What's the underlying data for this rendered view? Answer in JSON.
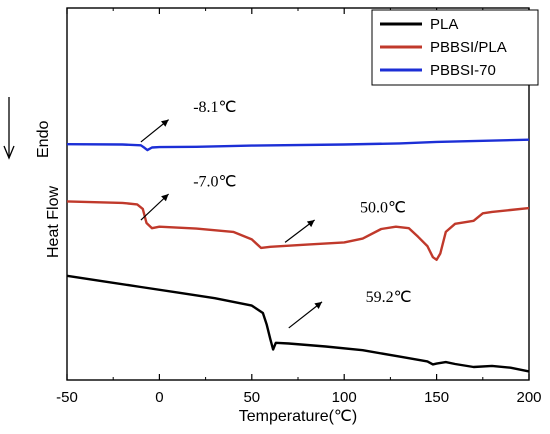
{
  "chart_data": {
    "type": "line",
    "xlabel": "Temperature(℃)",
    "ylabel": "Heat Flow",
    "direction_label": "Endo",
    "xlim": [
      -50,
      200
    ],
    "ylim": [
      0,
      100
    ],
    "xticks": [
      "-50",
      "0",
      "50",
      "100",
      "150",
      "200"
    ],
    "grid": false,
    "legend_position": "top-right",
    "series": [
      {
        "name": "PLA",
        "color": "#000000",
        "points": [
          [
            -50,
            28
          ],
          [
            -30,
            26.5
          ],
          [
            -10,
            25
          ],
          [
            10,
            23.5
          ],
          [
            30,
            22
          ],
          [
            50,
            20
          ],
          [
            56,
            18
          ],
          [
            58,
            15
          ],
          [
            60,
            11
          ],
          [
            61.5,
            8.2
          ],
          [
            63,
            10
          ],
          [
            70,
            9.8
          ],
          [
            90,
            9
          ],
          [
            110,
            8
          ],
          [
            130,
            6.3
          ],
          [
            145,
            5
          ],
          [
            148,
            4.2
          ],
          [
            150,
            4.4
          ],
          [
            155,
            4.8
          ],
          [
            160,
            4.3
          ],
          [
            170,
            3.5
          ],
          [
            180,
            3.8
          ],
          [
            190,
            3.3
          ],
          [
            200,
            2.3
          ]
        ]
      },
      {
        "name": "PBBSI/PLA",
        "color": "#c0392b",
        "points": [
          [
            -50,
            48
          ],
          [
            -20,
            47.6
          ],
          [
            -12,
            47.2
          ],
          [
            -9,
            46
          ],
          [
            -7,
            42.2
          ],
          [
            -4,
            40.8
          ],
          [
            0,
            41.2
          ],
          [
            20,
            40.7
          ],
          [
            40,
            39.8
          ],
          [
            50,
            37.8
          ],
          [
            55,
            35.5
          ],
          [
            60,
            35.8
          ],
          [
            80,
            36.4
          ],
          [
            100,
            37
          ],
          [
            110,
            38
          ],
          [
            120,
            40.6
          ],
          [
            128,
            41.2
          ],
          [
            135,
            40.8
          ],
          [
            140,
            38.5
          ],
          [
            145,
            36
          ],
          [
            148,
            33
          ],
          [
            150,
            32.3
          ],
          [
            152,
            34
          ],
          [
            155,
            39.8
          ],
          [
            160,
            42
          ],
          [
            170,
            42.8
          ],
          [
            175,
            44.8
          ],
          [
            180,
            45.2
          ],
          [
            190,
            45.7
          ],
          [
            200,
            46.2
          ]
        ]
      },
      {
        "name": "PBBSI-70",
        "color": "#1c2fd6",
        "points": [
          [
            -50,
            63.4
          ],
          [
            -20,
            63.3
          ],
          [
            -10,
            63.1
          ],
          [
            -8,
            62.4
          ],
          [
            -6.5,
            61.8
          ],
          [
            -4,
            62.5
          ],
          [
            0,
            62.6
          ],
          [
            20,
            62.7
          ],
          [
            50,
            63
          ],
          [
            100,
            63.3
          ],
          [
            130,
            63.6
          ],
          [
            150,
            64
          ],
          [
            200,
            64.6
          ]
        ]
      }
    ],
    "annotations": [
      {
        "text": "-8.1℃",
        "x": 30,
        "y": 72,
        "arrow_from": [
          -10,
          64
        ],
        "arrow_to": [
          5,
          70
        ]
      },
      {
        "text": "-7.0℃",
        "x": 30,
        "y": 52,
        "arrow_from": [
          -10,
          43
        ],
        "arrow_to": [
          5,
          50
        ]
      },
      {
        "text": "50.0℃",
        "x": 121,
        "y": 45,
        "arrow_from": [
          68,
          37
        ],
        "arrow_to": [
          84,
          43
        ]
      },
      {
        "text": "59.2℃",
        "x": 124,
        "y": 21,
        "arrow_from": [
          70,
          14
        ],
        "arrow_to": [
          88,
          21
        ]
      }
    ]
  }
}
